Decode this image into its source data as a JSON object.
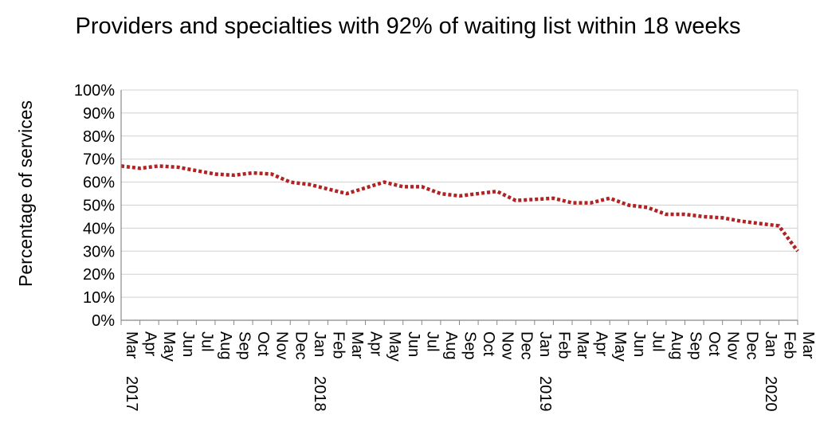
{
  "chart_data": {
    "type": "line",
    "title": "Providers and specialties with 92% of waiting list within 18 weeks",
    "ylabel": "Percentage of services",
    "xlabel": "",
    "ylim": [
      0,
      100
    ],
    "ytick_labels": [
      "0%",
      "10%",
      "20%",
      "30%",
      "40%",
      "50%",
      "60%",
      "70%",
      "80%",
      "90%",
      "100%"
    ],
    "categories": [
      "Mar",
      "Apr",
      "May",
      "Jun",
      "Jul",
      "Aug",
      "Sep",
      "Oct",
      "Nov",
      "Dec",
      "Jan",
      "Feb",
      "Mar",
      "Apr",
      "May",
      "Jun",
      "Jul",
      "Aug",
      "Sep",
      "Oct",
      "Nov",
      "Dec",
      "Jan",
      "Feb",
      "Mar",
      "Apr",
      "May",
      "Jun",
      "Jul",
      "Aug",
      "Sep",
      "Oct",
      "Nov",
      "Dec",
      "Jan",
      "Feb",
      "Mar"
    ],
    "year_labels": [
      {
        "index": 0,
        "label": "2017"
      },
      {
        "index": 10,
        "label": "2018"
      },
      {
        "index": 22,
        "label": "2019"
      },
      {
        "index": 34,
        "label": "2020"
      }
    ],
    "series": [
      {
        "values": [
          67,
          66,
          67,
          66.5,
          65,
          63.5,
          63,
          64,
          63.5,
          60,
          59,
          57,
          55,
          57.5,
          60,
          58,
          58,
          55,
          54,
          55,
          56,
          52,
          52.5,
          53,
          51,
          51,
          53,
          50,
          49,
          46,
          46,
          45,
          44.5,
          43,
          42,
          41,
          30
        ],
        "color": "#b22222"
      }
    ],
    "grid": true,
    "legend": "none"
  }
}
